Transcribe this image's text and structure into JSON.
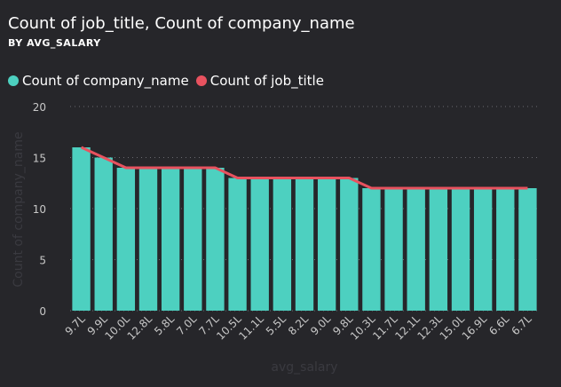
{
  "chart_data": {
    "type": "bar",
    "title": "Count of job_title, Count of company_name",
    "subtitle": "BY AVG_SALARY",
    "xlabel": "avg_salary",
    "ylabel": "Count of company_name",
    "ylim": [
      0,
      20
    ],
    "yticks": [
      "0",
      "5",
      "10",
      "15",
      "20"
    ],
    "grid": true,
    "legend_position": "top-left",
    "categories": [
      "9.7L",
      "9.9L",
      "10.0L",
      "12.8L",
      "5.8L",
      "7.0L",
      "7.7L",
      "10.5L",
      "11.1L",
      "5.5L",
      "8.2L",
      "9.0L",
      "9.8L",
      "10.3L",
      "11.7L",
      "12.1L",
      "12.3L",
      "15.0L",
      "16.9L",
      "6.6L",
      "6.7L"
    ],
    "series": [
      {
        "name": "Count of company_name",
        "type": "bar",
        "color": "#4dd0c0",
        "values": [
          16,
          15,
          14,
          14,
          14,
          14,
          14,
          13,
          13,
          13,
          13,
          13,
          13,
          12,
          12,
          12,
          12,
          12,
          12,
          12,
          12
        ]
      },
      {
        "name": "Count of job_title",
        "type": "line",
        "color": "#e8525f",
        "values": [
          16,
          15,
          14,
          14,
          14,
          14,
          14,
          13,
          13,
          13,
          13,
          13,
          13,
          12,
          12,
          12,
          12,
          12,
          12,
          12,
          12
        ]
      }
    ]
  }
}
